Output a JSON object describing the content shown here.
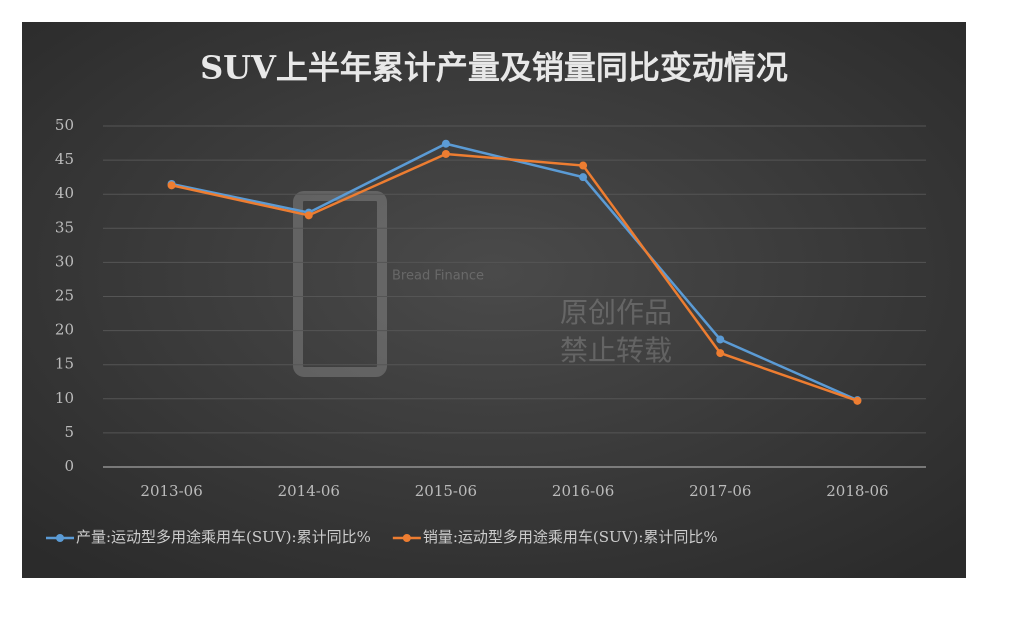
{
  "chart_data": {
    "type": "line",
    "title": "SUV上半年累计产量及销量同比变动情况",
    "categories": [
      "2013-06",
      "2014-06",
      "2015-06",
      "2016-06",
      "2017-06",
      "2018-06"
    ],
    "series": [
      {
        "name": "产量:运动型多用途乘用车(SUV):累计同比%",
        "color": "#5b9bd5",
        "values": [
          41.5,
          37.3,
          47.4,
          42.5,
          18.7,
          9.8
        ]
      },
      {
        "name": "销量:运动型多用途乘用车(SUV):累计同比%",
        "color": "#ed7d31",
        "values": [
          41.3,
          36.9,
          45.9,
          44.2,
          16.7,
          9.7
        ]
      }
    ],
    "ylim": [
      0,
      50
    ],
    "yticks": [
      0,
      5,
      10,
      15,
      20,
      25,
      30,
      35,
      40,
      45,
      50
    ],
    "grid": true,
    "legend": "bottom"
  },
  "watermark": {
    "brand": "Bread Finance",
    "line1": "原创作品",
    "line2": "禁止转载"
  }
}
